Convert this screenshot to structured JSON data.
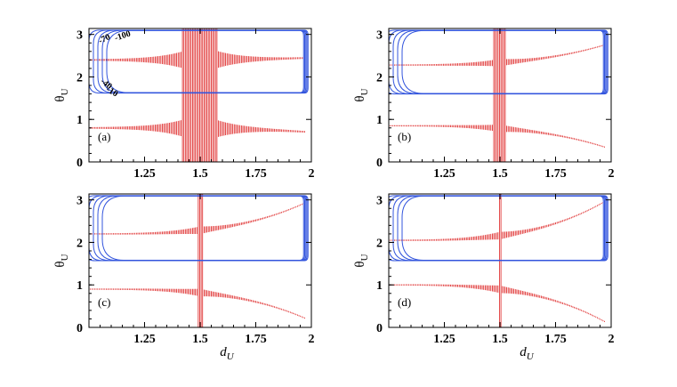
{
  "colors": {
    "contour": "#3355dd",
    "scatter": "#dd2222",
    "frame": "#000000",
    "background": "#ffffff"
  },
  "chart_data": [
    {
      "id": "a",
      "type": "contour+scatter",
      "panel_label": "(a)",
      "xlabel": "",
      "ylabel": "θU",
      "ylabel_main": "θ",
      "ylabel_sub": "U",
      "xlim": [
        1.0,
        2.0
      ],
      "ylim": [
        0,
        3.14
      ],
      "xticks": [
        1.25,
        1.5,
        1.75,
        2
      ],
      "xtick_labels": [
        "1.25",
        "1.5",
        "1.75",
        "2"
      ],
      "yticks": [
        0,
        1,
        2,
        3
      ],
      "ytick_labels": [
        "0",
        "1",
        "2",
        "3"
      ],
      "contour_levels": [
        "-100",
        "-70",
        "-40",
        "-10"
      ],
      "contour_bands": {
        "upper": [
          2.55,
          3.1
        ],
        "lower": [
          1.62,
          1.92
        ]
      },
      "scatter_center_x": 1.5,
      "scatter_halfwidth": 0.08,
      "scatter_upper_curve": {
        "at_1": 2.4,
        "at_2": 2.45
      },
      "scatter_lower_curve": {
        "at_1": 0.8,
        "at_2": 0.7
      },
      "grid": false
    },
    {
      "id": "b",
      "type": "contour+scatter",
      "panel_label": "(b)",
      "xlabel": "",
      "ylabel": "θU",
      "ylabel_main": "θ",
      "ylabel_sub": "U",
      "xlim": [
        1.0,
        2.0
      ],
      "ylim": [
        0,
        3.14
      ],
      "xticks": [
        1.25,
        1.5,
        1.75,
        2
      ],
      "xtick_labels": [
        "1.25",
        "1.5",
        "1.75",
        "2"
      ],
      "yticks": [
        0,
        1,
        2,
        3
      ],
      "ytick_labels": [
        "0",
        "1",
        "2",
        "3"
      ],
      "contour_levels": [],
      "contour_bands": {
        "upper": [
          2.65,
          3.1
        ],
        "lower": [
          1.6,
          1.75
        ]
      },
      "scatter_center_x": 1.5,
      "scatter_halfwidth": 0.03,
      "scatter_upper_curve": {
        "at_1": 2.28,
        "at_2": 2.8
      },
      "scatter_lower_curve": {
        "at_1": 0.85,
        "at_2": 0.3
      },
      "grid": false
    },
    {
      "id": "c",
      "type": "contour+scatter",
      "panel_label": "(c)",
      "xlabel": "d_U",
      "xlabel_main": "d",
      "xlabel_sub": "U",
      "ylabel": "θU",
      "ylabel_main": "θ",
      "ylabel_sub": "U",
      "xlim": [
        1.0,
        2.0
      ],
      "ylim": [
        0,
        3.14
      ],
      "xticks": [
        1.25,
        1.5,
        1.75,
        2
      ],
      "xtick_labels": [
        "1.25",
        "1.5",
        "1.75",
        "2"
      ],
      "yticks": [
        0,
        1,
        2,
        3
      ],
      "ytick_labels": [
        "0",
        "1",
        "2",
        "3"
      ],
      "contour_levels": [],
      "contour_bands": {
        "upper": [
          2.7,
          3.1
        ],
        "lower": [
          1.57,
          1.65
        ]
      },
      "scatter_center_x": 1.5,
      "scatter_halfwidth": 0.015,
      "scatter_upper_curve": {
        "at_1": 2.2,
        "at_2": 3.0
      },
      "scatter_lower_curve": {
        "at_1": 0.9,
        "at_2": 0.15
      },
      "grid": false
    },
    {
      "id": "d",
      "type": "contour+scatter",
      "panel_label": "(d)",
      "xlabel": "d_U",
      "xlabel_main": "d",
      "xlabel_sub": "U",
      "ylabel": "θU",
      "ylabel_main": "θ",
      "ylabel_sub": "U",
      "xlim": [
        1.0,
        2.0
      ],
      "ylim": [
        0,
        3.14
      ],
      "xticks": [
        1.25,
        1.5,
        1.75,
        2
      ],
      "xtick_labels": [
        "1.25",
        "1.5",
        "1.75",
        "2"
      ],
      "yticks": [
        0,
        1,
        2,
        3
      ],
      "ytick_labels": [
        "0",
        "1",
        "2",
        "3"
      ],
      "contour_levels": [],
      "contour_bands": {
        "upper": [
          2.72,
          3.1
        ],
        "lower": [
          1.57,
          1.62
        ]
      },
      "scatter_center_x": 1.5,
      "scatter_halfwidth": 0.005,
      "scatter_upper_curve": {
        "at_1": 2.05,
        "at_2": 3.05
      },
      "scatter_lower_curve": {
        "at_1": 1.0,
        "at_2": 0.05
      },
      "grid": false
    }
  ]
}
